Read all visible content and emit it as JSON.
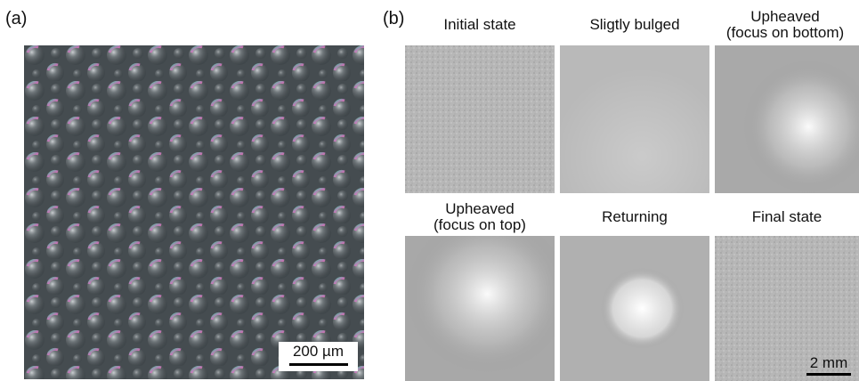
{
  "panel_a": {
    "label": "(a)",
    "scale_bar": "200 µm"
  },
  "panel_b": {
    "label": "(b)",
    "frames": [
      {
        "title_line1": "Initial state",
        "title_line2": ""
      },
      {
        "title_line1": "Sligtly bulged",
        "title_line2": ""
      },
      {
        "title_line1": "Upheaved",
        "title_line2": "(focus on bottom)"
      },
      {
        "title_line1": "Upheaved",
        "title_line2": "(focus on top)"
      },
      {
        "title_line1": "Returning",
        "title_line2": ""
      },
      {
        "title_line1": "Final state",
        "title_line2": ""
      }
    ],
    "scale_bar": "2 mm"
  }
}
